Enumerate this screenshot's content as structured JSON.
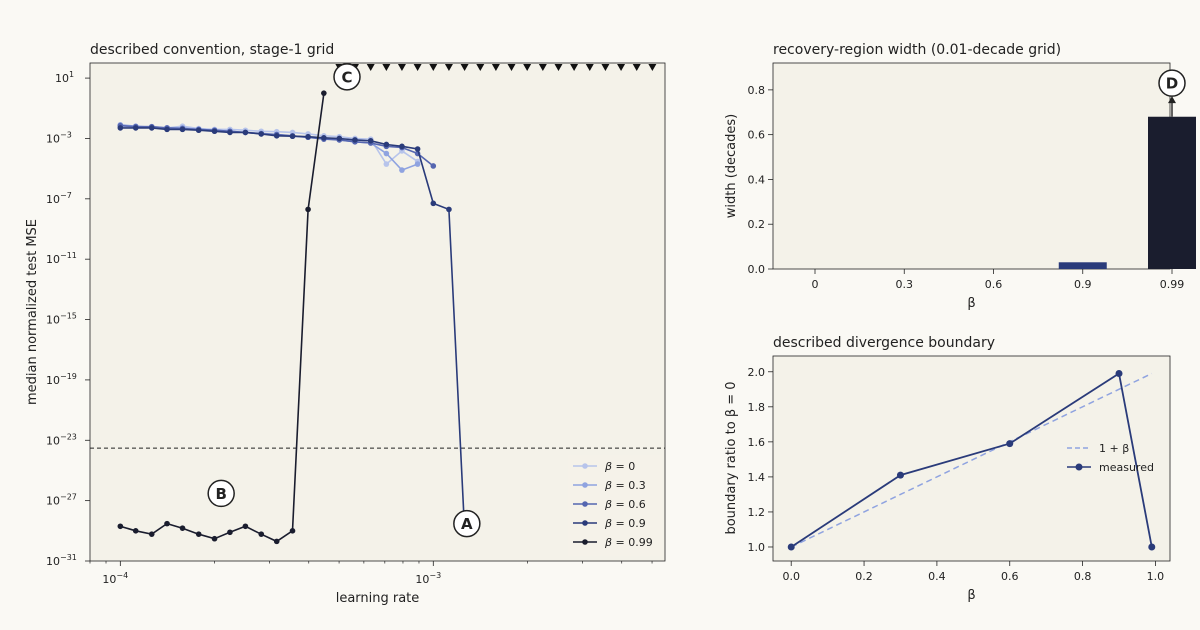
{
  "chart_data": [
    {
      "type": "line",
      "title": "described convention, stage-1 grid",
      "xlabel": "learning rate",
      "ylabel": "median normalized test MSE",
      "xscale": "log",
      "yscale": "log",
      "xlim": [
        8e-05,
        0.0055
      ],
      "ylim": [
        1e-31,
        100.0
      ],
      "xticks": [
        {
          "value": 0.0001,
          "base": "10",
          "exp": "−4"
        },
        {
          "value": 0.001,
          "base": "10",
          "exp": "−3"
        }
      ],
      "yticks": [
        {
          "value": 10.0,
          "base": "10",
          "exp": "1"
        },
        {
          "value": 0.001,
          "base": "10",
          "exp": "−3"
        },
        {
          "value": 1e-07,
          "base": "10",
          "exp": "−7"
        },
        {
          "value": 1e-11,
          "base": "10",
          "exp": "−11"
        },
        {
          "value": 1e-15,
          "base": "10",
          "exp": "−15"
        },
        {
          "value": 1e-19,
          "base": "10",
          "exp": "−19"
        },
        {
          "value": 1e-23,
          "base": "10",
          "exp": "−23"
        },
        {
          "value": 1e-27,
          "base": "10",
          "exp": "−27"
        },
        {
          "value": 1e-31,
          "base": "10",
          "exp": "−31"
        }
      ],
      "threshold": 3e-24,
      "divergence_markers_x": [
        0.000501,
        0.000562,
        0.000631,
        0.000708,
        0.000794,
        0.000891,
        0.001,
        0.001122,
        0.001259,
        0.001413,
        0.001585,
        0.001778,
        0.001995,
        0.002239,
        0.002512,
        0.002818,
        0.003162,
        0.003548,
        0.003981,
        0.004467,
        0.005012
      ],
      "annotations": [
        {
          "label": "A",
          "x": 0.00128,
          "y": 3e-29
        },
        {
          "label": "B",
          "x": 0.00021,
          "y": 3e-27
        },
        {
          "label": "C",
          "x": 0.00053,
          "y": 12
        }
      ],
      "legend_loc": "lower right",
      "series": [
        {
          "name": "β = 0",
          "beta_value": "0",
          "color": "#b7c4eb",
          "points": [
            [
              0.0001,
              0.007
            ],
            [
              0.000112,
              0.006
            ],
            [
              0.000126,
              0.006
            ],
            [
              0.000141,
              0.005
            ],
            [
              0.000158,
              0.0065
            ],
            [
              0.000178,
              0.0045
            ],
            [
              0.0002,
              0.004
            ],
            [
              0.000224,
              0.004
            ],
            [
              0.000251,
              0.0035
            ],
            [
              0.000282,
              0.003
            ],
            [
              0.000316,
              0.0028
            ],
            [
              0.000355,
              0.0025
            ],
            [
              0.000398,
              0.002
            ],
            [
              0.000447,
              0.0015
            ],
            [
              0.000501,
              0.0013
            ],
            [
              0.000562,
              0.001
            ],
            [
              0.000631,
              0.0009
            ],
            [
              0.000708,
              2e-05
            ],
            [
              0.000794,
              0.00015
            ],
            [
              0.000891,
              3e-05
            ]
          ]
        },
        {
          "name": "β = 0.3",
          "beta_value": "0.3",
          "color": "#8fa3e0",
          "points": [
            [
              0.0001,
              0.008
            ],
            [
              0.000112,
              0.0065
            ],
            [
              0.000126,
              0.0055
            ],
            [
              0.000141,
              0.005
            ],
            [
              0.000158,
              0.005
            ],
            [
              0.000178,
              0.004
            ],
            [
              0.0002,
              0.0035
            ],
            [
              0.000224,
              0.003
            ],
            [
              0.000251,
              0.0025
            ],
            [
              0.000282,
              0.0022
            ],
            [
              0.000316,
              0.0018
            ],
            [
              0.000355,
              0.0014
            ],
            [
              0.000398,
              0.0012
            ],
            [
              0.000447,
              0.001
            ],
            [
              0.000501,
              0.0008
            ],
            [
              0.000562,
              0.0006
            ],
            [
              0.000631,
              0.0005
            ],
            [
              0.000708,
              0.0001
            ],
            [
              0.000794,
              8e-06
            ],
            [
              0.000891,
              2e-05
            ]
          ]
        },
        {
          "name": "β = 0.6",
          "beta_value": "0.6",
          "color": "#5566b0",
          "points": [
            [
              0.0001,
              0.007
            ],
            [
              0.000112,
              0.006
            ],
            [
              0.000126,
              0.006
            ],
            [
              0.000141,
              0.005
            ],
            [
              0.000158,
              0.0045
            ],
            [
              0.000178,
              0.004
            ],
            [
              0.0002,
              0.0035
            ],
            [
              0.000224,
              0.003
            ],
            [
              0.000251,
              0.0025
            ],
            [
              0.000282,
              0.002
            ],
            [
              0.000316,
              0.0018
            ],
            [
              0.000355,
              0.0015
            ],
            [
              0.000398,
              0.0012
            ],
            [
              0.000447,
              0.0009
            ],
            [
              0.000501,
              0.0008
            ],
            [
              0.000562,
              0.0006
            ],
            [
              0.000631,
              0.0005
            ],
            [
              0.000708,
              0.0003
            ],
            [
              0.000794,
              0.00025
            ],
            [
              0.000891,
              0.0001
            ],
            [
              0.001,
              1.5e-05
            ]
          ]
        },
        {
          "name": "β = 0.9",
          "beta_value": "0.9",
          "color": "#2a3b7a",
          "points": [
            [
              0.0001,
              0.005
            ],
            [
              0.000112,
              0.005
            ],
            [
              0.000126,
              0.005
            ],
            [
              0.000141,
              0.004
            ],
            [
              0.000158,
              0.004
            ],
            [
              0.000178,
              0.0035
            ],
            [
              0.0002,
              0.003
            ],
            [
              0.000224,
              0.0025
            ],
            [
              0.000251,
              0.0025
            ],
            [
              0.000282,
              0.002
            ],
            [
              0.000316,
              0.0015
            ],
            [
              0.000355,
              0.0014
            ],
            [
              0.000398,
              0.0013
            ],
            [
              0.000447,
              0.0011
            ],
            [
              0.000501,
              0.001
            ],
            [
              0.000562,
              0.0008
            ],
            [
              0.000631,
              0.0007
            ],
            [
              0.000708,
              0.0004
            ],
            [
              0.000794,
              0.0003
            ],
            [
              0.000891,
              0.0002
            ],
            [
              0.001,
              5e-08
            ],
            [
              0.001122,
              2e-08
            ],
            [
              0.001259,
              1e-29
            ]
          ]
        },
        {
          "name": "β = 0.99",
          "beta_value": "0.99",
          "color": "#1a1d2e",
          "points": [
            [
              0.0001,
              2e-29
            ],
            [
              0.000112,
              1e-29
            ],
            [
              0.000126,
              6e-30
            ],
            [
              0.000141,
              3e-29
            ],
            [
              0.000158,
              1.5e-29
            ],
            [
              0.000178,
              6e-30
            ],
            [
              0.0002,
              3e-30
            ],
            [
              0.000224,
              8e-30
            ],
            [
              0.000251,
              2e-29
            ],
            [
              0.000282,
              6e-30
            ],
            [
              0.000316,
              2e-30
            ],
            [
              0.000355,
              1e-29
            ],
            [
              0.000398,
              2e-08
            ],
            [
              0.000447,
              1
            ]
          ]
        }
      ]
    },
    {
      "type": "bar",
      "title": "recovery-region width (0.01-decade grid)",
      "xlabel": "β",
      "ylabel": "width (decades)",
      "categories": [
        "0",
        "0.3",
        "0.6",
        "0.9",
        "0.99"
      ],
      "values": [
        0,
        0,
        0,
        0.03,
        0.68
      ],
      "colors": [
        "#b7c4eb",
        "#8fa3e0",
        "#5566b0",
        "#2a3b7a",
        "#1a1d2e"
      ],
      "ylim": [
        0,
        0.92
      ],
      "yticks": [
        "0.0",
        "0.2",
        "0.4",
        "0.6",
        "0.8"
      ],
      "annotations": [
        {
          "label": "D",
          "category": "0.99",
          "y": 0.83
        }
      ]
    },
    {
      "type": "line",
      "title": "described divergence boundary",
      "xlabel": "β",
      "ylabel": "boundary ratio to β = 0",
      "xlim": [
        -0.05,
        1.04
      ],
      "ylim": [
        0.92,
        2.09
      ],
      "xticks": [
        "0.0",
        "0.2",
        "0.4",
        "0.6",
        "0.8",
        "1.0"
      ],
      "yticks": [
        "1.0",
        "1.2",
        "1.4",
        "1.6",
        "1.8",
        "2.0"
      ],
      "legend_loc": "center right",
      "series": [
        {
          "name": "1 + β",
          "style": "dashed",
          "color": "#8fa3e0",
          "x": [
            0,
            0.99
          ],
          "y": [
            1,
            1.99
          ]
        },
        {
          "name": "measured",
          "style": "solid",
          "color": "#2a3b7a",
          "x": [
            0,
            0.3,
            0.6,
            0.9,
            0.99
          ],
          "y": [
            1.0,
            1.41,
            1.59,
            1.99,
            1.0
          ]
        }
      ]
    }
  ]
}
